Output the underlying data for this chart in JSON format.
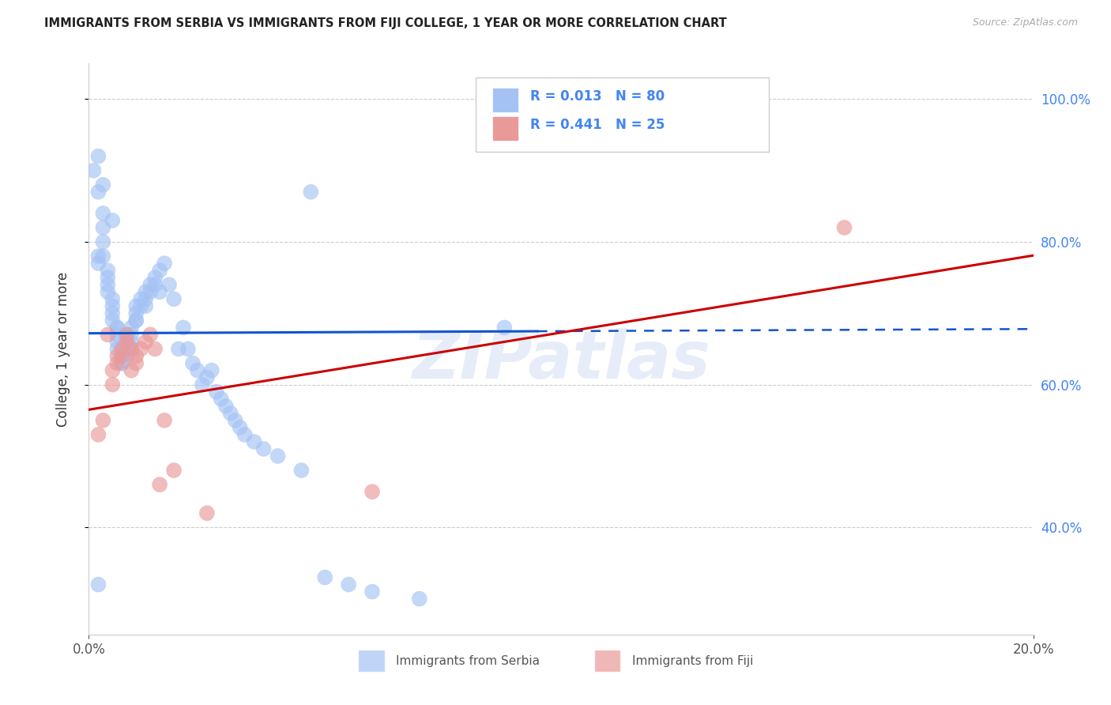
{
  "title": "IMMIGRANTS FROM SERBIA VS IMMIGRANTS FROM FIJI COLLEGE, 1 YEAR OR MORE CORRELATION CHART",
  "source": "Source: ZipAtlas.com",
  "ylabel": "College, 1 year or more",
  "serbia_color": "#a4c2f4",
  "fiji_color": "#ea9999",
  "serbia_line_color": "#1155cc",
  "fiji_line_color": "#cc0000",
  "watermark": "ZIPatlas",
  "serbia_r": 0.013,
  "serbia_n": 80,
  "fiji_r": 0.441,
  "fiji_n": 25,
  "xmin": 0.0,
  "xmax": 0.2,
  "ymin": 0.25,
  "ymax": 1.05,
  "serbia_intercept": 0.672,
  "serbia_slope": 0.03,
  "fiji_intercept": 0.565,
  "fiji_slope": 1.08,
  "right_tick_color": "#4285f4",
  "legend_text_color": "#4285f4",
  "grid_color": "#cccccc",
  "serbia_scatter_x": [
    0.001,
    0.002,
    0.002,
    0.003,
    0.003,
    0.003,
    0.004,
    0.004,
    0.004,
    0.004,
    0.005,
    0.005,
    0.005,
    0.005,
    0.006,
    0.006,
    0.006,
    0.006,
    0.006,
    0.007,
    0.007,
    0.007,
    0.007,
    0.008,
    0.008,
    0.008,
    0.008,
    0.009,
    0.009,
    0.009,
    0.009,
    0.01,
    0.01,
    0.01,
    0.01,
    0.011,
    0.011,
    0.012,
    0.012,
    0.012,
    0.013,
    0.013,
    0.014,
    0.014,
    0.015,
    0.015,
    0.016,
    0.017,
    0.018,
    0.019,
    0.02,
    0.021,
    0.022,
    0.023,
    0.024,
    0.025,
    0.026,
    0.027,
    0.028,
    0.029,
    0.03,
    0.031,
    0.032,
    0.033,
    0.035,
    0.037,
    0.04,
    0.045,
    0.05,
    0.055,
    0.06,
    0.07,
    0.002,
    0.003,
    0.005,
    0.047,
    0.002,
    0.003,
    0.002,
    0.088
  ],
  "serbia_scatter_y": [
    0.9,
    0.78,
    0.77,
    0.82,
    0.8,
    0.78,
    0.76,
    0.75,
    0.74,
    0.73,
    0.72,
    0.71,
    0.7,
    0.69,
    0.68,
    0.68,
    0.67,
    0.66,
    0.65,
    0.65,
    0.64,
    0.63,
    0.63,
    0.67,
    0.66,
    0.65,
    0.64,
    0.68,
    0.67,
    0.66,
    0.65,
    0.71,
    0.7,
    0.69,
    0.69,
    0.72,
    0.71,
    0.73,
    0.72,
    0.71,
    0.74,
    0.73,
    0.75,
    0.74,
    0.76,
    0.73,
    0.77,
    0.74,
    0.72,
    0.65,
    0.68,
    0.65,
    0.63,
    0.62,
    0.6,
    0.61,
    0.62,
    0.59,
    0.58,
    0.57,
    0.56,
    0.55,
    0.54,
    0.53,
    0.52,
    0.51,
    0.5,
    0.48,
    0.33,
    0.32,
    0.31,
    0.3,
    0.87,
    0.84,
    0.83,
    0.87,
    0.92,
    0.88,
    0.32,
    0.68
  ],
  "fiji_scatter_x": [
    0.002,
    0.003,
    0.004,
    0.005,
    0.005,
    0.006,
    0.006,
    0.007,
    0.007,
    0.008,
    0.008,
    0.009,
    0.009,
    0.01,
    0.01,
    0.011,
    0.012,
    0.013,
    0.014,
    0.015,
    0.016,
    0.018,
    0.025,
    0.06,
    0.16
  ],
  "fiji_scatter_y": [
    0.53,
    0.55,
    0.67,
    0.6,
    0.62,
    0.64,
    0.63,
    0.65,
    0.64,
    0.67,
    0.66,
    0.65,
    0.62,
    0.64,
    0.63,
    0.65,
    0.66,
    0.67,
    0.65,
    0.46,
    0.55,
    0.48,
    0.42,
    0.45,
    0.82
  ]
}
